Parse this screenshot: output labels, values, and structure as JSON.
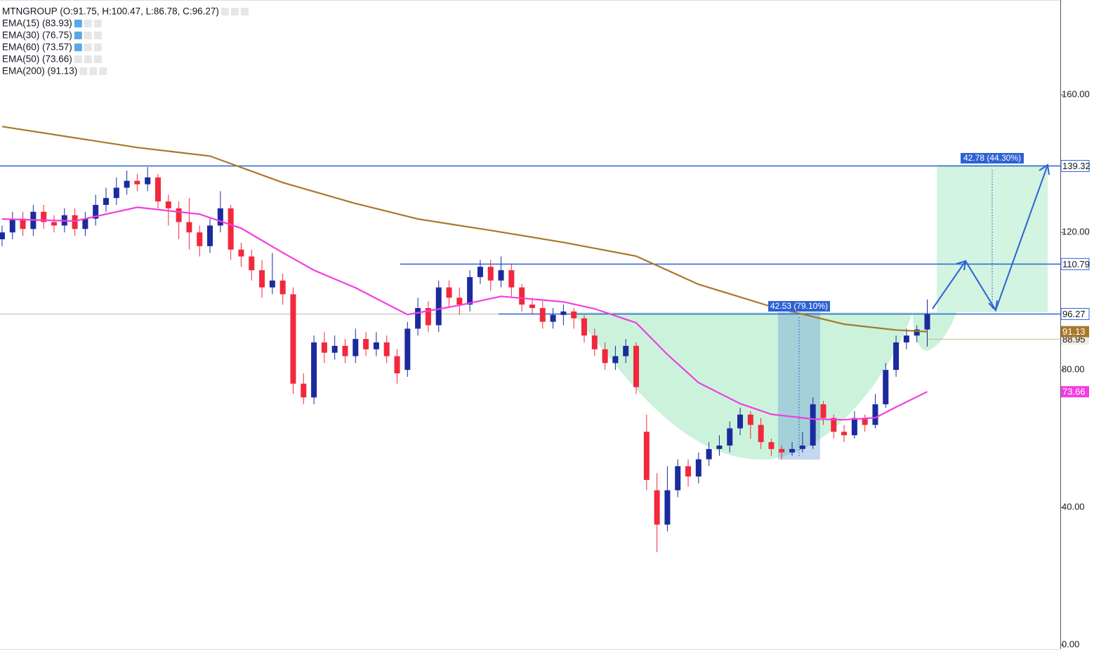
{
  "chart_data": {
    "type": "candlestick",
    "header": [
      "MTNGROUP (O:91.75, H:100.47, L:86.78, C:96.27)",
      "EMA(15) (83.93)",
      "EMA(30) (76.75)",
      "EMA(60) (73.57)",
      "EMA(50) (73.66)",
      "EMA(200) (91.13)"
    ],
    "xlim": [
      -0.2,
      101.8
    ],
    "ylim": [
      -1.2,
      187.6
    ],
    "yticks": [
      {
        "value": 0,
        "label": "0.00"
      },
      {
        "value": 40,
        "label": "40.00"
      },
      {
        "value": 80,
        "label": "80.00"
      },
      {
        "value": 120,
        "label": "120.00"
      },
      {
        "value": 160,
        "label": "160.00"
      }
    ],
    "up_color": "#1b2a9e",
    "down_color": "#f2283c",
    "open": [
      118,
      120,
      124,
      121,
      126,
      123,
      122,
      125,
      121,
      124,
      128,
      130,
      133,
      135,
      134,
      136,
      129,
      127,
      123,
      120,
      116,
      122,
      127,
      115,
      113,
      109,
      104,
      106,
      102,
      76,
      72,
      88,
      85,
      87,
      84,
      89,
      86,
      88,
      84,
      80,
      92,
      98,
      93,
      104,
      101,
      99,
      107,
      110,
      106,
      109,
      104,
      99,
      98,
      94,
      96,
      97,
      95,
      90,
      86,
      82,
      84,
      87,
      62,
      45,
      35,
      45,
      52,
      49,
      54,
      57,
      58,
      63,
      67,
      64,
      59,
      57,
      56,
      57,
      58,
      70,
      66,
      62,
      61,
      66,
      64,
      70,
      80,
      88,
      90,
      91.75
    ],
    "high": [
      122,
      126,
      126,
      128,
      128,
      125,
      127,
      127,
      126,
      131,
      133,
      136,
      138,
      137,
      139,
      137,
      131,
      129,
      130,
      122,
      124,
      132,
      128,
      117,
      115,
      112,
      114,
      108,
      104,
      79,
      90,
      91,
      90,
      89,
      92,
      91,
      91,
      90,
      86,
      94,
      101,
      100,
      106,
      106,
      104,
      109,
      112,
      112,
      113,
      111,
      105,
      101,
      100,
      98,
      99,
      98,
      96,
      92,
      88,
      87,
      89,
      88,
      67,
      50,
      52,
      54,
      54,
      56,
      59,
      61,
      65,
      69,
      68,
      66,
      60,
      58,
      59,
      62,
      72,
      71,
      67,
      64,
      68,
      67,
      73,
      82,
      90,
      92,
      93,
      100.47
    ],
    "low": [
      116,
      118,
      119,
      119,
      121,
      120,
      120,
      119,
      119,
      122,
      126,
      128,
      131,
      132,
      132,
      127,
      122,
      118,
      115,
      113,
      114,
      120,
      112,
      110,
      106,
      101,
      102,
      99,
      73,
      70,
      70,
      82,
      83,
      82,
      82,
      84,
      84,
      82,
      76,
      78,
      90,
      91,
      91,
      98,
      96,
      97,
      105,
      103,
      104,
      101,
      97,
      96,
      92,
      92,
      93,
      92,
      88,
      84,
      80,
      80,
      82,
      73,
      45,
      27,
      33,
      43,
      46,
      47,
      52,
      55,
      56,
      61,
      60,
      57,
      55,
      54,
      55,
      56,
      57,
      64,
      60,
      59,
      60,
      62,
      63,
      69,
      78,
      86,
      88,
      86.78
    ],
    "close": [
      120,
      124,
      121,
      126,
      123,
      122,
      125,
      121,
      124,
      128,
      130,
      133,
      135,
      134,
      136,
      129,
      127,
      123,
      120,
      116,
      122,
      127,
      115,
      113,
      109,
      104,
      106,
      102,
      76,
      72,
      88,
      85,
      87,
      84,
      89,
      86,
      88,
      84,
      79,
      92,
      98,
      93,
      104,
      101,
      99,
      107,
      110,
      106,
      109,
      104,
      99,
      98,
      94,
      96,
      97,
      95,
      90,
      86,
      82,
      84,
      87,
      75,
      48,
      35,
      45,
      52,
      49,
      54,
      57,
      58,
      63,
      67,
      64,
      59,
      57,
      56,
      57,
      58,
      70,
      66,
      62,
      61,
      66,
      64,
      70,
      80,
      88,
      90,
      91.75,
      96.27
    ],
    "series": [
      {
        "name": "EMA(200)",
        "color": "#a8782a",
        "x": [
          0,
          13,
          20,
          27,
          34,
          40,
          47,
          54,
          61,
          64,
          67,
          74,
          81,
          86,
          89
        ],
        "values": [
          150.8,
          144.7,
          142.2,
          134.5,
          128.4,
          123.9,
          120.6,
          117.1,
          113.1,
          109,
          104.9,
          98.4,
          93.3,
          91.6,
          91.13
        ]
      },
      {
        "name": "EMA(50)",
        "color": "#f23ee0",
        "x": [
          0,
          7,
          13,
          19,
          23,
          27,
          30,
          34,
          39,
          44,
          48,
          54,
          57,
          61,
          64,
          67,
          71,
          74,
          78,
          81,
          84,
          86,
          89
        ],
        "values": [
          123.9,
          123.3,
          127.3,
          125.3,
          121.2,
          114.1,
          109,
          103.9,
          96.1,
          98.8,
          101.4,
          99.8,
          97.8,
          93.7,
          84.5,
          76.3,
          70.2,
          67.1,
          65.7,
          65.5,
          66.1,
          69.2,
          73.66
        ]
      }
    ],
    "levels": [
      139.32,
      110.79,
      96.27,
      88.95
    ],
    "measures": [
      "42.53 (79.10%)",
      "42.78 (44.30%)"
    ]
  }
}
